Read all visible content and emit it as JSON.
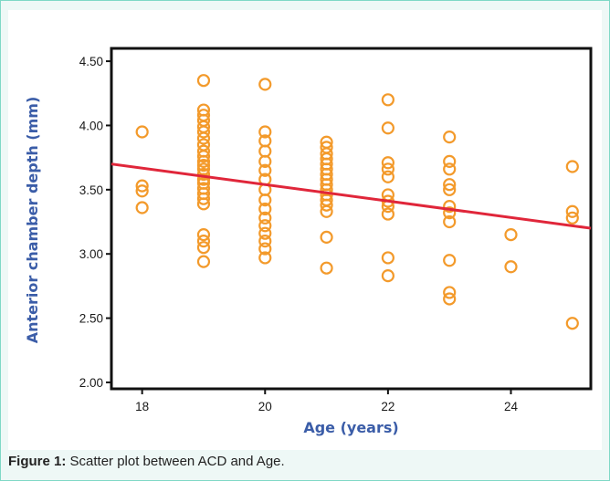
{
  "caption": {
    "label": "Figure 1:",
    "text": "Scatter plot between ACD and Age."
  },
  "colors": {
    "marker": "#f39a2b",
    "fit_line": "#e0263a",
    "axis_title": "#3b5da8",
    "frame": "#7fd8c6"
  },
  "chart_data": {
    "type": "scatter",
    "title": "",
    "xlabel": "Age (years)",
    "ylabel": "Anterior chamber depth (mm)",
    "xlim": [
      17.5,
      25.3
    ],
    "ylim": [
      1.95,
      4.6
    ],
    "x_ticks": [
      18,
      20,
      22,
      24
    ],
    "x_tick_labels": [
      "18",
      "20",
      "22",
      "24"
    ],
    "y_ticks": [
      2.0,
      2.5,
      3.0,
      3.5,
      4.0,
      4.5
    ],
    "y_tick_labels": [
      "2.00",
      "2.50",
      "3.00",
      "3.50",
      "4.00",
      "4.50"
    ],
    "grid": false,
    "points": [
      [
        18,
        3.95
      ],
      [
        18,
        3.53
      ],
      [
        18,
        3.49
      ],
      [
        18,
        3.36
      ],
      [
        19,
        4.35
      ],
      [
        19,
        4.12
      ],
      [
        19,
        4.08
      ],
      [
        19,
        4.04
      ],
      [
        19,
        3.99
      ],
      [
        19,
        3.95
      ],
      [
        19,
        3.9
      ],
      [
        19,
        3.85
      ],
      [
        19,
        3.8
      ],
      [
        19,
        3.76
      ],
      [
        19,
        3.72
      ],
      [
        19,
        3.69
      ],
      [
        19,
        3.66
      ],
      [
        19,
        3.62
      ],
      [
        19,
        3.58
      ],
      [
        19,
        3.55
      ],
      [
        19,
        3.51
      ],
      [
        19,
        3.47
      ],
      [
        19,
        3.43
      ],
      [
        19,
        3.39
      ],
      [
        19,
        3.15
      ],
      [
        19,
        3.1
      ],
      [
        19,
        3.05
      ],
      [
        19,
        2.94
      ],
      [
        20,
        4.32
      ],
      [
        20,
        3.95
      ],
      [
        20,
        3.88
      ],
      [
        20,
        3.8
      ],
      [
        20,
        3.72
      ],
      [
        20,
        3.65
      ],
      [
        20,
        3.58
      ],
      [
        20,
        3.5
      ],
      [
        20,
        3.42
      ],
      [
        20,
        3.35
      ],
      [
        20,
        3.28
      ],
      [
        20,
        3.22
      ],
      [
        20,
        3.16
      ],
      [
        20,
        3.1
      ],
      [
        20,
        3.04
      ],
      [
        20,
        2.97
      ],
      [
        21,
        3.87
      ],
      [
        21,
        3.83
      ],
      [
        21,
        3.78
      ],
      [
        21,
        3.74
      ],
      [
        21,
        3.7
      ],
      [
        21,
        3.66
      ],
      [
        21,
        3.62
      ],
      [
        21,
        3.58
      ],
      [
        21,
        3.54
      ],
      [
        21,
        3.5
      ],
      [
        21,
        3.46
      ],
      [
        21,
        3.42
      ],
      [
        21,
        3.38
      ],
      [
        21,
        3.33
      ],
      [
        21,
        3.13
      ],
      [
        21,
        2.89
      ],
      [
        22,
        4.2
      ],
      [
        22,
        3.98
      ],
      [
        22,
        3.71
      ],
      [
        22,
        3.66
      ],
      [
        22,
        3.6
      ],
      [
        22,
        3.46
      ],
      [
        22,
        3.41
      ],
      [
        22,
        3.37
      ],
      [
        22,
        3.31
      ],
      [
        22,
        2.97
      ],
      [
        22,
        2.83
      ],
      [
        23,
        3.91
      ],
      [
        23,
        3.72
      ],
      [
        23,
        3.66
      ],
      [
        23,
        3.54
      ],
      [
        23,
        3.5
      ],
      [
        23,
        3.37
      ],
      [
        23,
        3.32
      ],
      [
        23,
        3.25
      ],
      [
        23,
        2.95
      ],
      [
        23,
        2.7
      ],
      [
        23,
        2.65
      ],
      [
        24,
        3.15
      ],
      [
        24,
        2.9
      ],
      [
        25,
        3.68
      ],
      [
        25,
        3.33
      ],
      [
        25,
        3.28
      ],
      [
        25,
        2.46
      ]
    ],
    "fit_line": {
      "x": [
        17.5,
        25.3
      ],
      "y": [
        3.7,
        3.2
      ]
    }
  }
}
